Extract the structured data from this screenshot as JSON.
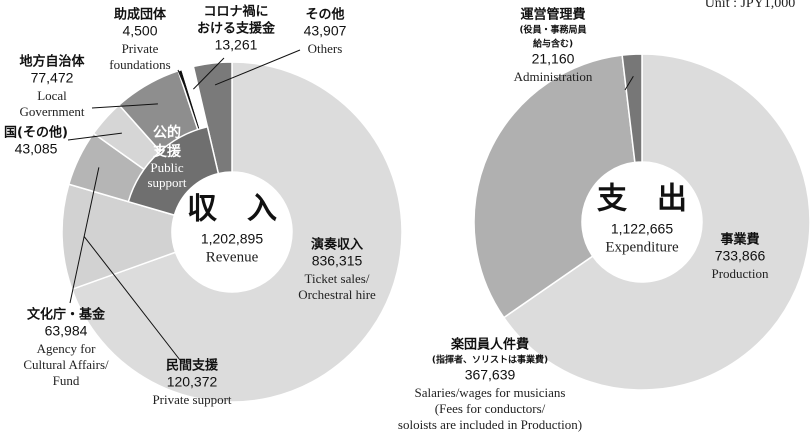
{
  "unit": "Unit : JPY1,000",
  "chart_data": [
    {
      "type": "donut",
      "center_title": "収　入",
      "total_label": "1,202,895",
      "center_subtitle": "Revenue",
      "group": {
        "name": [
          "公的",
          "支援"
        ],
        "name_en": [
          "Public",
          "support"
        ]
      },
      "segments": [
        {
          "name": [
            "演奏収入"
          ],
          "value": 836315,
          "value_label": "836,315",
          "name_en": [
            "Ticket sales/",
            "Orchestral hire"
          ],
          "color": "#dcdcdc"
        },
        {
          "name": [
            "民間支援"
          ],
          "value": 120372,
          "value_label": "120,372",
          "name_en": [
            "Private support"
          ],
          "color": "#d2d2d2"
        },
        {
          "name": [
            "文化庁・基金"
          ],
          "value": 63984,
          "value_label": "63,984",
          "name_en": [
            "Agency for",
            "Cultural Affairs/",
            "Fund"
          ],
          "color": "#b5b5b5"
        },
        {
          "name": [
            "国(その他)"
          ],
          "value": 43085,
          "value_label": "43,085",
          "color": "#d6d6d6"
        },
        {
          "name": [
            "地方自治体"
          ],
          "value": 77472,
          "value_label": "77,472",
          "name_en": [
            "Local",
            "Government"
          ],
          "color": "#8e8e8e"
        },
        {
          "name": [
            "助成団体"
          ],
          "value": 4500,
          "value_label": "4,500",
          "name_en": [
            "Private",
            "foundations"
          ],
          "color": "#111111"
        },
        {
          "name": [
            "コロナ禍に",
            "おける支援金"
          ],
          "value": 13261,
          "value_label": "13,261",
          "color": "#ffffff"
        },
        {
          "name": [
            "その他"
          ],
          "value": 43907,
          "value_label": "43,907",
          "name_en": [
            "Others"
          ],
          "color": "#7a7a7a"
        }
      ]
    },
    {
      "type": "donut",
      "center_title": "支　出",
      "total_label": "1,122,665",
      "center_subtitle": "Expenditure",
      "segments": [
        {
          "name": [
            "事業費"
          ],
          "value": 733866,
          "value_label": "733,866",
          "name_en": [
            "Production"
          ],
          "color": "#dcdcdc"
        },
        {
          "name": [
            "楽団員人件費"
          ],
          "note": [
            "(指揮者、ソリストは事業費)"
          ],
          "value": 367639,
          "value_label": "367,639",
          "name_en": [
            "Salaries/wages for musicians",
            "(Fees for conductors/",
            "soloists are included in Production)"
          ],
          "color": "#b0b0b0"
        },
        {
          "name": [
            "運営管理費"
          ],
          "note": [
            "(役員・事務局員",
            "給与含む)"
          ],
          "value": 21160,
          "value_label": "21,160",
          "name_en": [
            "Administration"
          ],
          "color": "#777777"
        }
      ]
    }
  ]
}
